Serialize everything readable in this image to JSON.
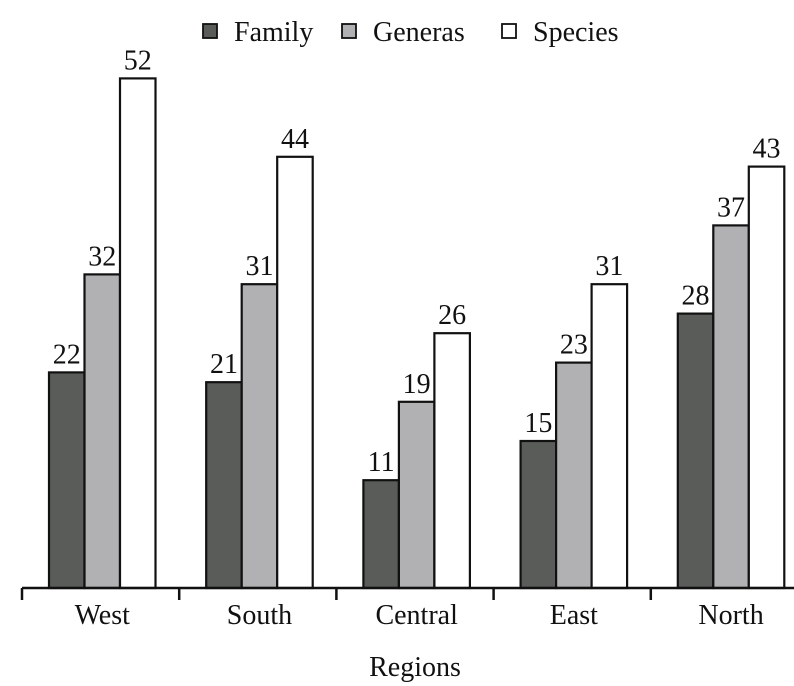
{
  "chart_data": {
    "type": "bar",
    "title": "",
    "xlabel": "Regions",
    "ylabel": "",
    "ylim": [
      0,
      55
    ],
    "grid": false,
    "legend_position": "top-center",
    "categories": [
      "West",
      "South",
      "Central",
      "East",
      "North"
    ],
    "series": [
      {
        "name": "Family",
        "values": [
          22,
          21,
          11,
          15,
          28
        ],
        "color": "#5a5c5a"
      },
      {
        "name": "Generas",
        "values": [
          32,
          31,
          19,
          23,
          37
        ],
        "color": "#b1b0b2"
      },
      {
        "name": "Species",
        "values": [
          52,
          44,
          26,
          31,
          43
        ],
        "color": "#ffffff"
      }
    ]
  }
}
